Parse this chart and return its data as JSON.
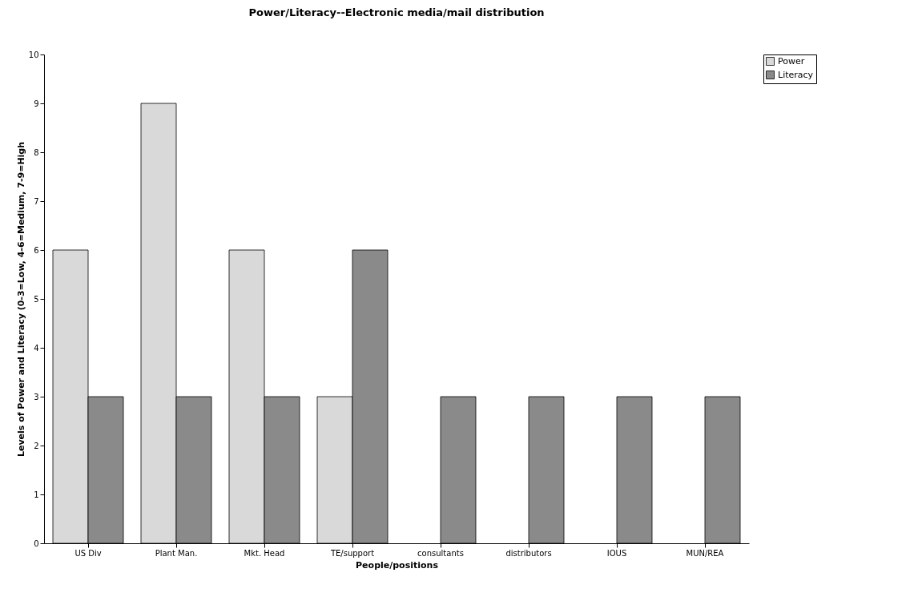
{
  "chart_data": {
    "type": "bar",
    "title": "Power/Literacy--Electronic media/mail distribution",
    "xlabel": "People/positions",
    "ylabel": "Levels of Power  and Literacy (0-3=Low, 4-6=Medium, 7-9=High",
    "categories": [
      "US Div",
      "Plant Man.",
      "Mkt. Head",
      "TE/support",
      "consultants",
      "distributors",
      "IOUS",
      "MUN/REA"
    ],
    "series": [
      {
        "name": "Power",
        "color": "#d9d9d9",
        "values": [
          6,
          9,
          6,
          3,
          null,
          null,
          null,
          null
        ]
      },
      {
        "name": "Literacy",
        "color": "#8a8a8a",
        "values": [
          3,
          3,
          3,
          6,
          3,
          3,
          3,
          3
        ]
      }
    ],
    "ylim": [
      0,
      10
    ],
    "yticks": [
      0,
      1,
      2,
      3,
      4,
      5,
      6,
      7,
      8,
      9,
      10
    ],
    "grid": false,
    "legend": "right"
  }
}
